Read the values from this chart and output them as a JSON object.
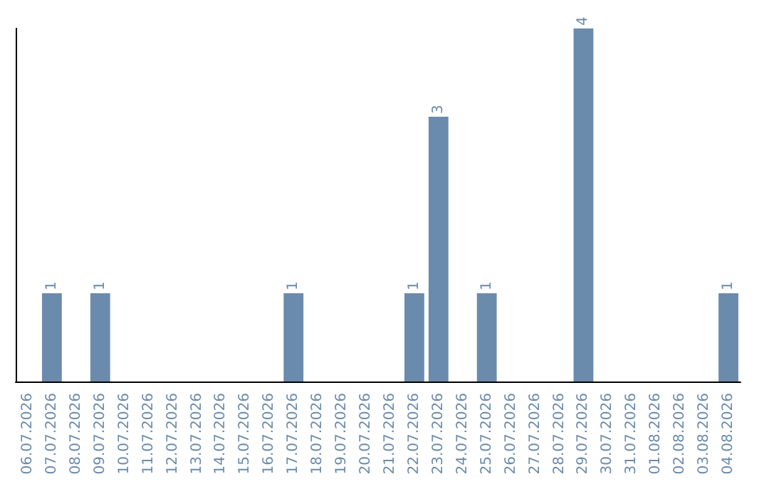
{
  "chart_data": {
    "type": "bar",
    "categories": [
      "06.07.2026",
      "07.07.2026",
      "08.07.2026",
      "09.07.2026",
      "10.07.2026",
      "11.07.2026",
      "12.07.2026",
      "13.07.2026",
      "14.07.2026",
      "15.07.2026",
      "16.07.2026",
      "17.07.2026",
      "18.07.2026",
      "19.07.2026",
      "20.07.2026",
      "21.07.2026",
      "22.07.2026",
      "23.07.2026",
      "24.07.2026",
      "25.07.2026",
      "26.07.2026",
      "27.07.2026",
      "28.07.2026",
      "29.07.2026",
      "30.07.2026",
      "31.07.2026",
      "01.08.2026",
      "02.08.2026",
      "03.08.2026",
      "04.08.2026"
    ],
    "values": [
      0,
      1,
      0,
      1,
      0,
      0,
      0,
      0,
      0,
      0,
      0,
      1,
      0,
      0,
      0,
      0,
      1,
      3,
      0,
      1,
      0,
      0,
      0,
      4,
      0,
      0,
      0,
      0,
      0,
      1
    ],
    "value_labels": [
      null,
      "1",
      null,
      "1",
      null,
      null,
      null,
      null,
      null,
      null,
      null,
      "1",
      null,
      null,
      null,
      null,
      "1",
      "3",
      null,
      "1",
      null,
      null,
      null,
      "4",
      null,
      null,
      null,
      null,
      null,
      "1"
    ],
    "color": "#6b8bad",
    "grid": false,
    "tick_labels": "x"
  }
}
